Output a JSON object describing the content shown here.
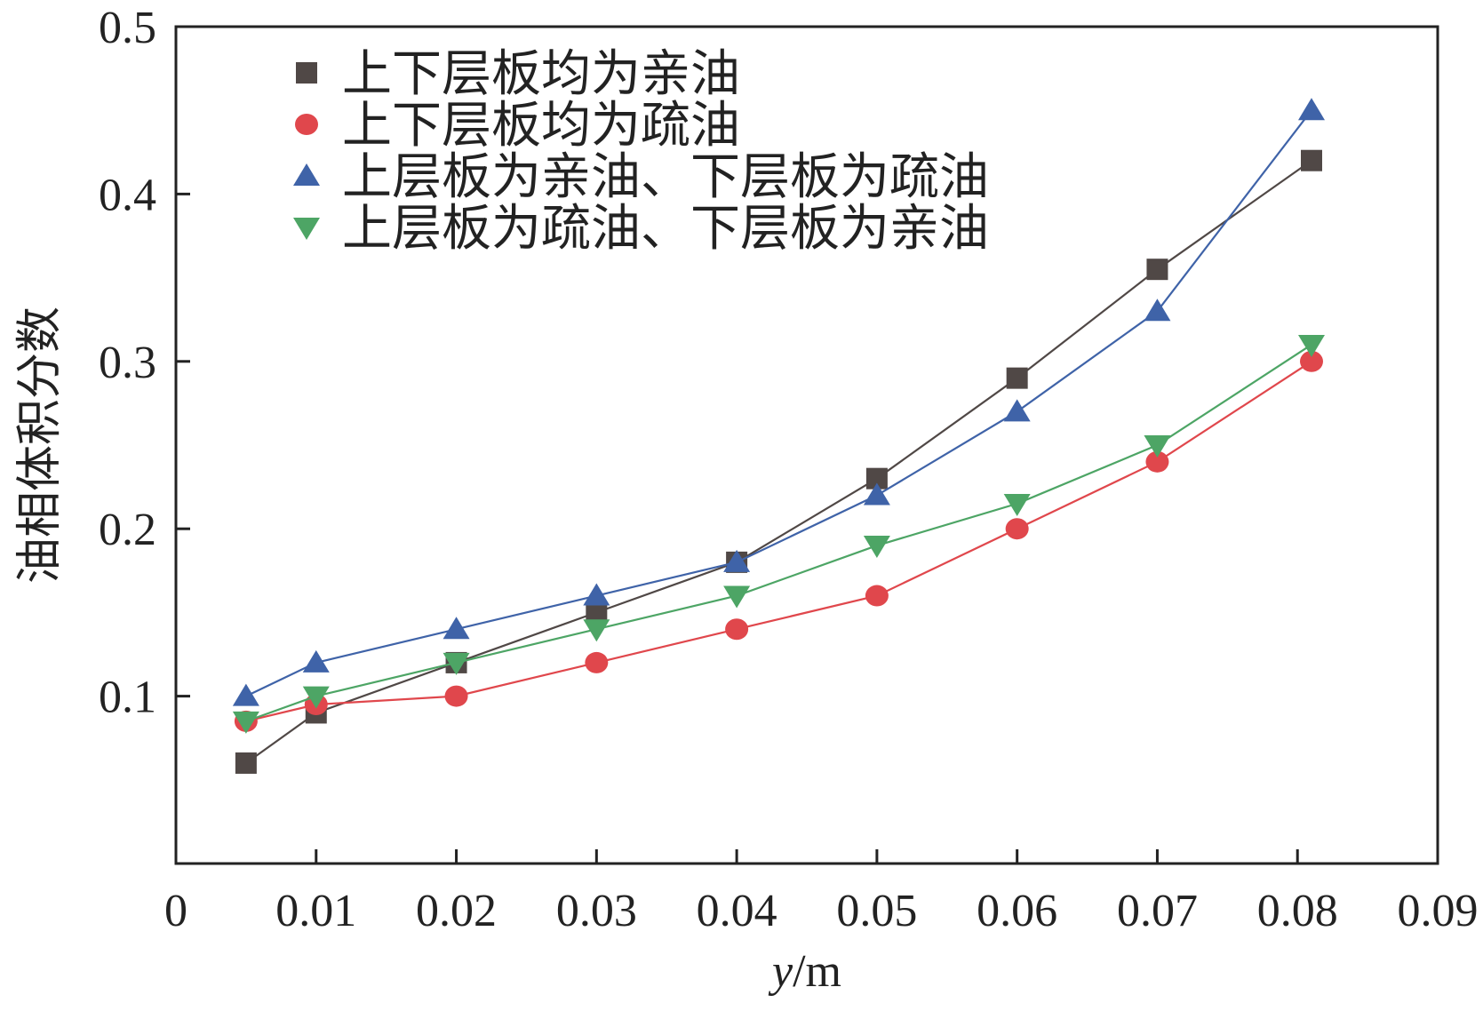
{
  "chart_data": {
    "type": "line",
    "xlabel_var": "y",
    "xlabel_unit": "/m",
    "ylabel": "油相体积分数",
    "xlim": [
      0,
      0.09
    ],
    "ylim": [
      0,
      0.5
    ],
    "x_ticks": [
      "0",
      "0.01",
      "0.02",
      "0.03",
      "0.04",
      "0.05",
      "0.06",
      "0.07",
      "0.08",
      "0.09"
    ],
    "y_ticks": [
      "0.1",
      "0.2",
      "0.3",
      "0.4",
      "0.5"
    ],
    "x": [
      0.005,
      0.01,
      0.02,
      0.03,
      0.04,
      0.05,
      0.06,
      0.07,
      0.081
    ],
    "legend_position": "top-left",
    "grid": false,
    "series": [
      {
        "name": "上下层板均为亲油",
        "marker": "square",
        "color": "#504846",
        "values": [
          0.06,
          0.09,
          0.12,
          0.15,
          0.18,
          0.23,
          0.29,
          0.355,
          0.42
        ]
      },
      {
        "name": "上下层板均为疏油",
        "marker": "circle",
        "color": "#e0474c",
        "values": [
          0.085,
          0.095,
          0.1,
          0.12,
          0.14,
          0.16,
          0.2,
          0.24,
          0.3
        ]
      },
      {
        "name": "上层板为亲油、下层板为疏油",
        "marker": "triangle-up",
        "color": "#3f63a8",
        "values": [
          0.1,
          0.12,
          0.14,
          0.16,
          0.18,
          0.22,
          0.27,
          0.33,
          0.45
        ]
      },
      {
        "name": "上层板为疏油、下层板为亲油",
        "marker": "triangle-down",
        "color": "#4da565",
        "values": [
          0.085,
          0.1,
          0.12,
          0.14,
          0.16,
          0.19,
          0.215,
          0.25,
          0.31
        ]
      }
    ]
  }
}
